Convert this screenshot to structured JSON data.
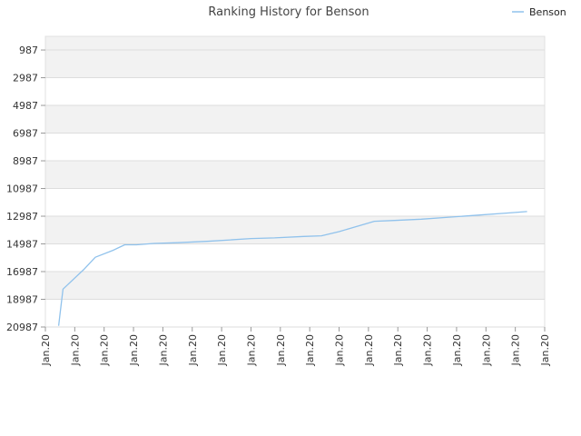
{
  "chart_data": {
    "type": "line",
    "title": "Ranking History for Benson",
    "xlabel": "",
    "ylabel": "",
    "y_inverted": true,
    "ylim": [
      0,
      20987
    ],
    "yticks": [
      987,
      2987,
      4987,
      6987,
      8987,
      10987,
      12987,
      14987,
      16987,
      18987,
      20987
    ],
    "xticks": [
      "Jan.20",
      "Jan.20",
      "Jan.20",
      "Jan.20",
      "Jan.20",
      "Jan.20",
      "Jan.20",
      "Jan.20",
      "Jan.20",
      "Jan.20",
      "Jan.20",
      "Jan.20",
      "Jan.20",
      "Jan.20",
      "Jan.20",
      "Jan.20",
      "Jan.20",
      "Jan.20"
    ],
    "xlim": [
      0,
      17
    ],
    "grid": true,
    "legend_position": "top-right",
    "series": [
      {
        "name": "Benson",
        "color": "#90c2ec",
        "x": [
          0.45,
          0.5,
          0.6,
          1.3,
          1.7,
          2.3,
          2.7,
          3.1,
          3.7,
          4.5,
          5.5,
          6.3,
          7.0,
          7.8,
          8.8,
          9.4,
          10.0,
          11.2,
          11.8,
          12.8,
          13.8,
          14.8,
          15.8,
          16.4
        ],
        "y": [
          20900,
          20000,
          18250,
          16850,
          15950,
          15450,
          15050,
          15050,
          14950,
          14900,
          14800,
          14700,
          14600,
          14550,
          14450,
          14400,
          14100,
          13350,
          13300,
          13200,
          13050,
          12900,
          12750,
          12650
        ]
      }
    ]
  }
}
